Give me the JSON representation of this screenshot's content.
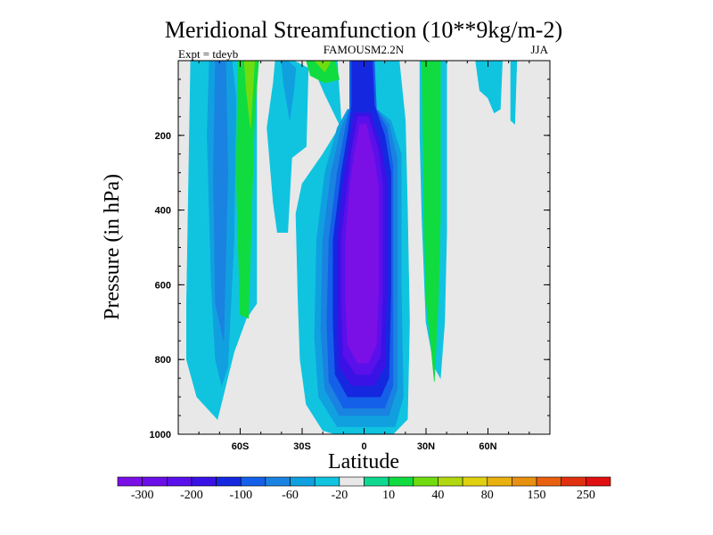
{
  "chart_data": {
    "type": "heatmap",
    "title": "Meridional Streamfunction (10**9kg/m-2)",
    "subtitle_left": "Expt = tdeyb",
    "subtitle_center": "FAMOUSM2.2N",
    "subtitle_right": "JJA",
    "xlabel": "Latitude",
    "ylabel": "Pressure (in hPa)",
    "x_range": [
      -90,
      90
    ],
    "y_range": [
      0,
      1000
    ],
    "y_reversed": true,
    "x_ticks": [
      {
        "value": -60,
        "label": "60S"
      },
      {
        "value": -30,
        "label": "30S"
      },
      {
        "value": 0,
        "label": "0"
      },
      {
        "value": 30,
        "label": "30N"
      },
      {
        "value": 60,
        "label": "60N"
      }
    ],
    "y_ticks": [
      {
        "value": 200,
        "label": "200"
      },
      {
        "value": 400,
        "label": "400"
      },
      {
        "value": 600,
        "label": "600"
      },
      {
        "value": 800,
        "label": "800"
      },
      {
        "value": 1000,
        "label": "1000"
      }
    ],
    "background_color": "#e8e8e8",
    "colorbar": {
      "colors": [
        "#7a10e6",
        "#6a0fe8",
        "#5a10ea",
        "#3a12e6",
        "#1528e0",
        "#1460e8",
        "#1a82e0",
        "#10a0e0",
        "#10c4e0",
        "#e8e8e8",
        "#10d890",
        "#10dc40",
        "#70dc10",
        "#b0d810",
        "#e0d010",
        "#e8b010",
        "#e89010",
        "#e86010",
        "#e03010",
        "#e01010"
      ],
      "labels": [
        "-300",
        "-200",
        "-100",
        "-60",
        "-20",
        "10",
        "40",
        "80",
        "150",
        "250"
      ]
    },
    "regions": [
      {
        "level": -20,
        "color": "#10c4e0",
        "points": [
          [
            -78,
            0
          ],
          [
            -52,
            0
          ],
          [
            -52,
            650
          ],
          [
            -57,
            690
          ],
          [
            -63,
            780
          ],
          [
            -67,
            870
          ],
          [
            -71,
            960
          ],
          [
            -81,
            900
          ],
          [
            -86,
            800
          ],
          [
            -86,
            650
          ],
          [
            -84,
            0
          ]
        ]
      },
      {
        "level": -60,
        "color": "#10a0e0",
        "points": [
          [
            -75,
            0
          ],
          [
            -64,
            0
          ],
          [
            -62,
            100
          ],
          [
            -63,
            480
          ],
          [
            -66,
            820
          ],
          [
            -69,
            870
          ],
          [
            -72,
            800
          ],
          [
            -74,
            600
          ],
          [
            -76,
            200
          ]
        ]
      },
      {
        "level": -100,
        "color": "#1a82e0",
        "points": [
          [
            -72,
            0
          ],
          [
            -67,
            0
          ],
          [
            -66,
            300
          ],
          [
            -68,
            750
          ],
          [
            -72,
            650
          ],
          [
            -73,
            300
          ]
        ]
      },
      {
        "level": 10,
        "color": "#10dc40",
        "points": [
          [
            -61,
            0
          ],
          [
            -51,
            0
          ],
          [
            -53,
            140
          ],
          [
            -56,
            690
          ],
          [
            -60,
            680
          ],
          [
            -62,
            300
          ]
        ]
      },
      {
        "level": 40,
        "color": "#70dc10",
        "points": [
          [
            -58,
            0
          ],
          [
            -53,
            0
          ],
          [
            -55,
            180
          ],
          [
            -57,
            80
          ]
        ]
      },
      {
        "level": -20,
        "color": "#10c4e0",
        "points": [
          [
            -43,
            0
          ],
          [
            -34,
            0
          ],
          [
            -27,
            20
          ],
          [
            -28,
            230
          ],
          [
            -35,
            260
          ],
          [
            -37,
            460
          ],
          [
            -42,
            460
          ],
          [
            -44,
            380
          ],
          [
            -47,
            180
          ],
          [
            -44,
            60
          ]
        ]
      },
      {
        "level": -60,
        "color": "#10a0e0",
        "points": [
          [
            -40,
            0
          ],
          [
            -37,
            0
          ],
          [
            -33,
            20
          ],
          [
            -34,
            80
          ],
          [
            -36,
            160
          ],
          [
            -39,
            60
          ]
        ]
      },
      {
        "level": -20,
        "color": "#10c4e0",
        "points": [
          [
            -26,
            0
          ],
          [
            -13,
            0
          ],
          [
            -11,
            170
          ],
          [
            -20,
            250
          ],
          [
            -30,
            330
          ],
          [
            -33,
            410
          ],
          [
            -32,
            640
          ],
          [
            -31,
            800
          ],
          [
            -28,
            920
          ],
          [
            -20,
            990
          ],
          [
            -14,
            1000
          ],
          [
            14,
            1000
          ],
          [
            21,
            960
          ],
          [
            22,
            700
          ],
          [
            21,
            400
          ],
          [
            20,
            160
          ],
          [
            17,
            0
          ],
          [
            -3,
            0
          ],
          [
            -4,
            130
          ],
          [
            -12,
            170
          ],
          [
            -19,
            90
          ]
        ]
      },
      {
        "level": 10,
        "color": "#10dc40",
        "points": [
          [
            -28,
            0
          ],
          [
            -14,
            0
          ],
          [
            -12,
            50
          ],
          [
            -19,
            60
          ],
          [
            -26,
            40
          ]
        ]
      },
      {
        "level": 40,
        "color": "#70dc10",
        "points": [
          [
            -24,
            0
          ],
          [
            -16,
            0
          ],
          [
            -19,
            30
          ]
        ]
      },
      {
        "level": -60,
        "color": "#10a0e0",
        "points": [
          [
            -8,
            130
          ],
          [
            6,
            130
          ],
          [
            13,
            160
          ],
          [
            18,
            250
          ],
          [
            18,
            600
          ],
          [
            19,
            900
          ],
          [
            15,
            980
          ],
          [
            -13,
            980
          ],
          [
            -22,
            900
          ],
          [
            -24,
            740
          ],
          [
            -23,
            480
          ],
          [
            -19,
            300
          ],
          [
            -13,
            180
          ]
        ]
      },
      {
        "level": -100,
        "color": "#1a82e0",
        "points": [
          [
            -7,
            130
          ],
          [
            6,
            130
          ],
          [
            12,
            170
          ],
          [
            16,
            260
          ],
          [
            16,
            620
          ],
          [
            16,
            880
          ],
          [
            12,
            950
          ],
          [
            -12,
            950
          ],
          [
            -19,
            880
          ],
          [
            -21,
            720
          ],
          [
            -20,
            480
          ],
          [
            -16,
            300
          ],
          [
            -11,
            180
          ]
        ]
      },
      {
        "level": -200,
        "color": "#1460e8",
        "points": [
          [
            -7,
            0
          ],
          [
            5,
            0
          ],
          [
            6,
            130
          ],
          [
            11,
            180
          ],
          [
            14,
            280
          ],
          [
            14,
            620
          ],
          [
            14,
            870
          ],
          [
            10,
            930
          ],
          [
            -10,
            930
          ],
          [
            -17,
            860
          ],
          [
            -18,
            700
          ],
          [
            -17,
            480
          ],
          [
            -13,
            300
          ],
          [
            -9,
            180
          ],
          [
            -7,
            130
          ]
        ]
      },
      {
        "level": -250,
        "color": "#1528e0",
        "points": [
          [
            -6,
            0
          ],
          [
            4,
            0
          ],
          [
            5,
            120
          ],
          [
            10,
            200
          ],
          [
            13,
            300
          ],
          [
            13,
            620
          ],
          [
            12,
            850
          ],
          [
            8,
            900
          ],
          [
            -8,
            900
          ],
          [
            -14,
            840
          ],
          [
            -15,
            700
          ],
          [
            -15,
            480
          ],
          [
            -11,
            300
          ],
          [
            -8,
            200
          ],
          [
            -6,
            120
          ]
        ]
      },
      {
        "level": -300,
        "color": "#3a12e6",
        "points": [
          [
            -5,
            140
          ],
          [
            3,
            140
          ],
          [
            8,
            220
          ],
          [
            11,
            320
          ],
          [
            11,
            620
          ],
          [
            10,
            820
          ],
          [
            5,
            870
          ],
          [
            -6,
            870
          ],
          [
            -12,
            820
          ],
          [
            -13,
            680
          ],
          [
            -13,
            480
          ],
          [
            -10,
            320
          ],
          [
            -7,
            220
          ]
        ]
      },
      {
        "level": -350,
        "color": "#5a10ea",
        "points": [
          [
            -3,
            150
          ],
          [
            2,
            150
          ],
          [
            7,
            240
          ],
          [
            9,
            330
          ],
          [
            9,
            620
          ],
          [
            8,
            790
          ],
          [
            3,
            840
          ],
          [
            -4,
            840
          ],
          [
            -10,
            790
          ],
          [
            -11,
            650
          ],
          [
            -11,
            480
          ],
          [
            -8,
            330
          ],
          [
            -6,
            240
          ]
        ]
      },
      {
        "level": -400,
        "color": "#7a10e6",
        "points": [
          [
            -2,
            170
          ],
          [
            1,
            170
          ],
          [
            5,
            260
          ],
          [
            7,
            340
          ],
          [
            7,
            620
          ],
          [
            6,
            760
          ],
          [
            2,
            810
          ],
          [
            -3,
            810
          ],
          [
            -8,
            760
          ],
          [
            -9,
            640
          ],
          [
            -9,
            480
          ],
          [
            -7,
            340
          ],
          [
            -5,
            260
          ]
        ]
      },
      {
        "level": -20,
        "color": "#10c4e0",
        "points": [
          [
            27,
            0
          ],
          [
            40,
            0
          ],
          [
            40,
            460
          ],
          [
            39,
            700
          ],
          [
            37,
            850
          ],
          [
            34,
            820
          ],
          [
            30,
            700
          ],
          [
            28,
            420
          ],
          [
            27,
            200
          ]
        ]
      },
      {
        "level": 10,
        "color": "#10dc40",
        "points": [
          [
            28,
            0
          ],
          [
            37,
            0
          ],
          [
            37,
            420
          ],
          [
            36,
            640
          ],
          [
            34,
            860
          ],
          [
            32,
            740
          ],
          [
            30,
            640
          ],
          [
            29,
            400
          ]
        ]
      },
      {
        "level": -20,
        "color": "#10c4e0",
        "points": [
          [
            54,
            0
          ],
          [
            67,
            0
          ],
          [
            66,
            130
          ],
          [
            63,
            140
          ],
          [
            60,
            100
          ],
          [
            56,
            80
          ]
        ]
      },
      {
        "level": -20,
        "color": "#10c4e0",
        "points": [
          [
            71,
            0
          ],
          [
            74,
            0
          ],
          [
            73,
            170
          ],
          [
            71,
            160
          ]
        ]
      }
    ]
  }
}
